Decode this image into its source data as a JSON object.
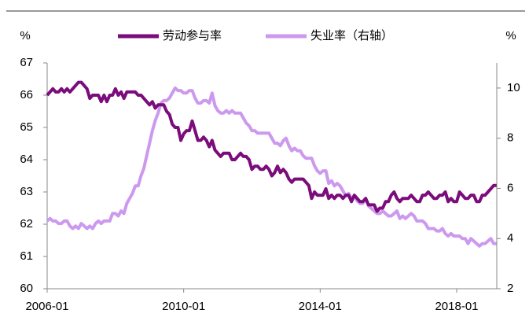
{
  "chart_data": {
    "type": "line",
    "y_unit": "%",
    "y2_unit": "%",
    "x": [
      "2006-01",
      "2006-02",
      "2006-03",
      "2006-04",
      "2006-05",
      "2006-06",
      "2006-07",
      "2006-08",
      "2006-09",
      "2006-10",
      "2006-11",
      "2006-12",
      "2007-01",
      "2007-02",
      "2007-03",
      "2007-04",
      "2007-05",
      "2007-06",
      "2007-07",
      "2007-08",
      "2007-09",
      "2007-10",
      "2007-11",
      "2007-12",
      "2008-01",
      "2008-02",
      "2008-03",
      "2008-04",
      "2008-05",
      "2008-06",
      "2008-07",
      "2008-08",
      "2008-09",
      "2008-10",
      "2008-11",
      "2008-12",
      "2009-01",
      "2009-02",
      "2009-03",
      "2009-04",
      "2009-05",
      "2009-06",
      "2009-07",
      "2009-08",
      "2009-09",
      "2009-10",
      "2009-11",
      "2009-12",
      "2010-01",
      "2010-02",
      "2010-03",
      "2010-04",
      "2010-05",
      "2010-06",
      "2010-07",
      "2010-08",
      "2010-09",
      "2010-10",
      "2010-11",
      "2010-12",
      "2011-01",
      "2011-02",
      "2011-03",
      "2011-04",
      "2011-05",
      "2011-06",
      "2011-07",
      "2011-08",
      "2011-09",
      "2011-10",
      "2011-11",
      "2011-12",
      "2012-01",
      "2012-02",
      "2012-03",
      "2012-04",
      "2012-05",
      "2012-06",
      "2012-07",
      "2012-08",
      "2012-09",
      "2012-10",
      "2012-11",
      "2012-12",
      "2013-01",
      "2013-02",
      "2013-03",
      "2013-04",
      "2013-05",
      "2013-06",
      "2013-07",
      "2013-08",
      "2013-09",
      "2013-10",
      "2013-11",
      "2013-12",
      "2014-01",
      "2014-02",
      "2014-03",
      "2014-04",
      "2014-05",
      "2014-06",
      "2014-07",
      "2014-08",
      "2014-09",
      "2014-10",
      "2014-11",
      "2014-12",
      "2015-01",
      "2015-02",
      "2015-03",
      "2015-04",
      "2015-05",
      "2015-06",
      "2015-07",
      "2015-08",
      "2015-09",
      "2015-10",
      "2015-11",
      "2015-12",
      "2016-01",
      "2016-02",
      "2016-03",
      "2016-04",
      "2016-05",
      "2016-06",
      "2016-07",
      "2016-08",
      "2016-09",
      "2016-10",
      "2016-11",
      "2016-12",
      "2017-01",
      "2017-02",
      "2017-03",
      "2017-04",
      "2017-05",
      "2017-06",
      "2017-07",
      "2017-08",
      "2017-09",
      "2017-10",
      "2017-11",
      "2017-12",
      "2018-01",
      "2018-02",
      "2018-03",
      "2018-04",
      "2018-05",
      "2018-06",
      "2018-07",
      "2018-08",
      "2018-09",
      "2018-10",
      "2018-11",
      "2018-12",
      "2019-01",
      "2019-02",
      "2019-03"
    ],
    "xticks": [
      "2006-01",
      "2010-01",
      "2014-01",
      "2018-01"
    ],
    "ylim": [
      60,
      67
    ],
    "yticks": [
      60,
      61,
      62,
      63,
      64,
      65,
      66,
      67
    ],
    "y2lim": [
      2,
      11
    ],
    "y2ticks": [
      2,
      4,
      6,
      8,
      10
    ],
    "series": [
      {
        "name": "劳动参与率",
        "color": "#7b0c7b",
        "values": [
          66.0,
          66.1,
          66.2,
          66.1,
          66.1,
          66.2,
          66.1,
          66.2,
          66.1,
          66.2,
          66.3,
          66.4,
          66.4,
          66.3,
          66.2,
          65.9,
          66.0,
          66.0,
          66.0,
          65.8,
          66.0,
          65.8,
          66.0,
          66.0,
          66.2,
          66.0,
          66.1,
          65.9,
          66.1,
          66.1,
          66.1,
          66.1,
          66.0,
          66.0,
          65.9,
          65.8,
          65.7,
          65.8,
          65.6,
          65.7,
          65.7,
          65.7,
          65.5,
          65.4,
          65.1,
          65.0,
          65.0,
          64.6,
          64.8,
          64.9,
          64.9,
          65.2,
          64.9,
          64.6,
          64.6,
          64.7,
          64.6,
          64.4,
          64.6,
          64.3,
          64.2,
          64.1,
          64.2,
          64.2,
          64.2,
          64.0,
          64.0,
          64.1,
          64.2,
          64.1,
          64.1,
          64.0,
          63.7,
          63.8,
          63.8,
          63.7,
          63.7,
          63.8,
          63.7,
          63.5,
          63.6,
          63.8,
          63.6,
          63.7,
          63.6,
          63.4,
          63.3,
          63.4,
          63.4,
          63.4,
          63.4,
          63.3,
          63.2,
          62.8,
          63.0,
          62.9,
          62.9,
          62.9,
          63.1,
          62.8,
          62.9,
          62.8,
          62.9,
          62.9,
          62.8,
          62.9,
          62.9,
          62.7,
          62.9,
          62.8,
          62.7,
          62.7,
          62.8,
          62.6,
          62.6,
          62.6,
          62.4,
          62.5,
          62.5,
          62.7,
          62.7,
          62.9,
          63.0,
          62.8,
          62.7,
          62.8,
          62.8,
          62.8,
          62.9,
          62.8,
          62.7,
          62.7,
          62.9,
          62.9,
          63.0,
          62.9,
          62.8,
          62.8,
          62.9,
          62.9,
          63.0,
          62.7,
          62.8,
          62.7,
          62.7,
          63.0,
          62.9,
          62.8,
          62.8,
          62.9,
          62.9,
          62.7,
          62.7,
          62.9,
          62.9,
          63.0,
          63.1,
          63.2,
          63.2
        ]
      },
      {
        "name": "失业率（右轴）",
        "color": "#cc99ee",
        "axis": "y2",
        "values": [
          4.7,
          4.8,
          4.7,
          4.7,
          4.6,
          4.6,
          4.7,
          4.7,
          4.5,
          4.4,
          4.5,
          4.4,
          4.6,
          4.5,
          4.4,
          4.5,
          4.4,
          4.6,
          4.7,
          4.6,
          4.7,
          4.7,
          4.7,
          5.0,
          5.0,
          4.9,
          5.1,
          5.0,
          5.4,
          5.6,
          5.8,
          6.1,
          6.1,
          6.5,
          6.8,
          7.3,
          7.8,
          8.3,
          8.7,
          9.0,
          9.4,
          9.5,
          9.5,
          9.6,
          9.8,
          10.0,
          9.9,
          9.9,
          9.8,
          9.8,
          9.9,
          9.9,
          9.6,
          9.4,
          9.4,
          9.5,
          9.5,
          9.4,
          9.8,
          9.3,
          9.1,
          9.0,
          9.0,
          9.1,
          9.0,
          9.1,
          9.0,
          9.0,
          9.0,
          8.8,
          8.6,
          8.5,
          8.3,
          8.3,
          8.2,
          8.2,
          8.2,
          8.2,
          8.2,
          8.0,
          7.8,
          7.8,
          7.7,
          7.9,
          8.0,
          7.7,
          7.5,
          7.6,
          7.5,
          7.5,
          7.3,
          7.2,
          7.2,
          7.2,
          6.9,
          6.7,
          6.6,
          6.7,
          6.7,
          6.2,
          6.3,
          6.1,
          6.2,
          6.1,
          5.9,
          5.7,
          5.8,
          5.6,
          5.7,
          5.5,
          5.4,
          5.4,
          5.6,
          5.3,
          5.2,
          5.1,
          5.0,
          5.0,
          5.1,
          5.0,
          4.9,
          4.9,
          5.0,
          5.1,
          4.8,
          4.9,
          4.8,
          4.9,
          5.0,
          4.9,
          4.7,
          4.7,
          4.7,
          4.6,
          4.4,
          4.4,
          4.4,
          4.3,
          4.3,
          4.4,
          4.2,
          4.1,
          4.2,
          4.1,
          4.1,
          4.1,
          4.0,
          4.0,
          3.8,
          4.0,
          3.9,
          3.8,
          3.7,
          3.8,
          3.8,
          3.9,
          4.0,
          3.8,
          3.8
        ]
      }
    ]
  }
}
